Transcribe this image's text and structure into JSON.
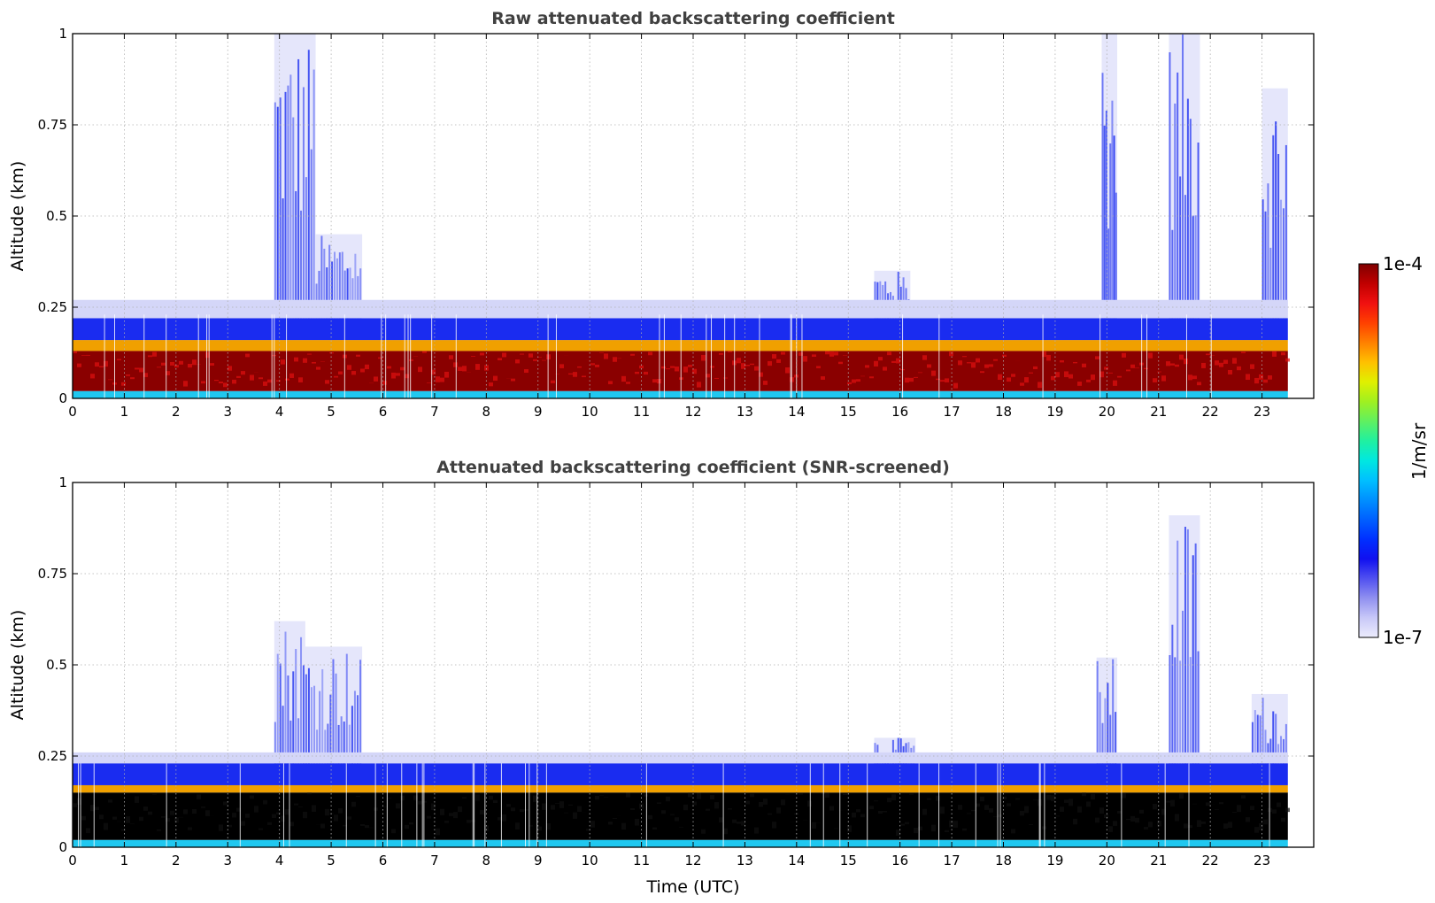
{
  "chart_data": [
    {
      "type": "heatmap",
      "title": "Raw attenuated backscattering coefficient",
      "xlabel": "",
      "ylabel": "Altitude (km)",
      "xlim": [
        0,
        24
      ],
      "ylim": [
        0,
        1
      ],
      "x_ticks": [
        "0",
        "1",
        "2",
        "3",
        "4",
        "5",
        "6",
        "7",
        "8",
        "9",
        "10",
        "11",
        "12",
        "13",
        "14",
        "15",
        "16",
        "17",
        "18",
        "19",
        "20",
        "21",
        "22",
        "23"
      ],
      "y_ticks": [
        "0",
        "0.25",
        "0.5",
        "0.75",
        "1"
      ],
      "grid": true,
      "data_end_hour": 23.5,
      "layers": [
        {
          "name": "surface layer",
          "from_km": 0.0,
          "to_km": 0.02,
          "level": "cyan"
        },
        {
          "name": "dense layer",
          "from_km": 0.02,
          "to_km": 0.13,
          "level": "dark red"
        },
        {
          "name": "transition",
          "from_km": 0.13,
          "to_km": 0.16,
          "level": "yellow/orange"
        },
        {
          "name": "blue layer",
          "from_km": 0.16,
          "to_km": 0.22,
          "level": "blue"
        },
        {
          "name": "faint top",
          "from_km": 0.22,
          "to_km": 0.27,
          "level": "light blue"
        }
      ],
      "plumes": [
        {
          "start_hour": 3.9,
          "end_hour": 4.7,
          "top_km": 1.0
        },
        {
          "start_hour": 4.7,
          "end_hour": 5.6,
          "top_km": 0.45
        },
        {
          "start_hour": 19.9,
          "end_hour": 20.2,
          "top_km": 1.0
        },
        {
          "start_hour": 21.2,
          "end_hour": 21.8,
          "top_km": 1.0
        },
        {
          "start_hour": 23.0,
          "end_hour": 23.5,
          "top_km": 0.85
        },
        {
          "start_hour": 15.5,
          "end_hour": 16.2,
          "top_km": 0.35
        }
      ]
    },
    {
      "type": "heatmap",
      "title": "Attenuated backscattering coefficient (SNR-screened)",
      "xlabel": "Time (UTC)",
      "ylabel": "Altitude (km)",
      "xlim": [
        0,
        24
      ],
      "ylim": [
        0,
        1
      ],
      "x_ticks": [
        "0",
        "1",
        "2",
        "3",
        "4",
        "5",
        "6",
        "7",
        "8",
        "9",
        "10",
        "11",
        "12",
        "13",
        "14",
        "15",
        "16",
        "17",
        "18",
        "19",
        "20",
        "21",
        "22",
        "23"
      ],
      "y_ticks": [
        "0",
        "0.25",
        "0.5",
        "0.75",
        "1"
      ],
      "grid": true,
      "data_end_hour": 23.5,
      "layers": [
        {
          "name": "surface layer",
          "from_km": 0.0,
          "to_km": 0.02,
          "level": "cyan"
        },
        {
          "name": "screened (black)",
          "from_km": 0.02,
          "to_km": 0.15,
          "level": "black"
        },
        {
          "name": "transition",
          "from_km": 0.15,
          "to_km": 0.17,
          "level": "yellow/orange"
        },
        {
          "name": "blue layer",
          "from_km": 0.17,
          "to_km": 0.23,
          "level": "blue"
        },
        {
          "name": "faint top",
          "from_km": 0.23,
          "to_km": 0.26,
          "level": "light blue"
        }
      ],
      "plumes": [
        {
          "start_hour": 3.9,
          "end_hour": 4.5,
          "top_km": 0.62
        },
        {
          "start_hour": 4.5,
          "end_hour": 5.6,
          "top_km": 0.55
        },
        {
          "start_hour": 19.8,
          "end_hour": 20.2,
          "top_km": 0.52
        },
        {
          "start_hour": 21.2,
          "end_hour": 21.8,
          "top_km": 0.91
        },
        {
          "start_hour": 22.8,
          "end_hour": 23.5,
          "top_km": 0.42
        },
        {
          "start_hour": 15.5,
          "end_hour": 16.3,
          "top_km": 0.3
        }
      ]
    }
  ],
  "colorbar": {
    "label": "1/m/sr",
    "max_label": "1e-4",
    "min_label": "1e-7",
    "colors": [
      "#ececfc",
      "#c8c8f8",
      "#9090f0",
      "#5050f0",
      "#1010f0",
      "#0030ff",
      "#0060ff",
      "#0090ff",
      "#00c0ff",
      "#00e8e0",
      "#20f0a0",
      "#60f060",
      "#a0f020",
      "#e0f000",
      "#ffc000",
      "#ff8000",
      "#ff4000",
      "#f01010",
      "#c00000",
      "#800000"
    ]
  },
  "style": {
    "blue": "#1a2cf0",
    "light_blue": "#d4d6f8",
    "dark_red": "#8a0000",
    "red": "#e01010",
    "cyan": "#20c8f0",
    "black": "#000000"
  }
}
